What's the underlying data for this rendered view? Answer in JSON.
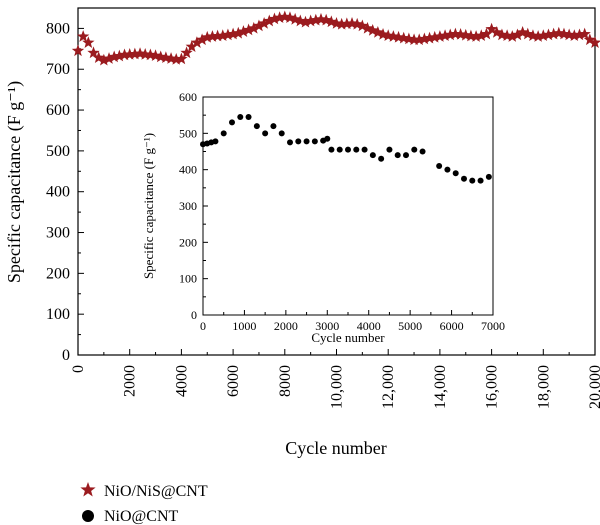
{
  "main_chart": {
    "xlabel": "Cycle number",
    "ylabel": "Specific capacitance (F g⁻¹)",
    "series_name": "NiO/NiS@CNT",
    "marker_color": "#9b1b1f",
    "xlim": [
      0,
      20000
    ],
    "ylim": [
      0,
      850
    ],
    "xticks": [
      "0",
      "2000",
      "4000",
      "6000",
      "8000",
      "10,000",
      "12,000",
      "14,000",
      "16,000",
      "18,000",
      "20,000"
    ],
    "yticks": [
      "0",
      "100",
      "200",
      "300",
      "400",
      "500",
      "600",
      "700",
      "800"
    ]
  },
  "inset_chart": {
    "xlabel": "Cycle number",
    "ylabel": "Specific capacitance (F g⁻¹)",
    "series_name": "NiO@CNT",
    "marker_color": "#000000",
    "xlim": [
      0,
      7000
    ],
    "ylim": [
      0,
      600
    ],
    "xticks": [
      "0",
      "1000",
      "2000",
      "3000",
      "4000",
      "5000",
      "6000",
      "7000"
    ],
    "yticks": [
      "0",
      "100",
      "200",
      "300",
      "400",
      "500",
      "600"
    ]
  },
  "legend": {
    "items": [
      {
        "label": "NiO/NiS@CNT",
        "marker": "star",
        "color": "#9b1b1f"
      },
      {
        "label": "NiO@CNT",
        "marker": "circle",
        "color": "#000000"
      }
    ]
  },
  "chart_data": [
    {
      "type": "scatter",
      "title": "",
      "xlabel": "Cycle number",
      "ylabel": "Specific capacitance (F g⁻¹)",
      "xlim": [
        0,
        20000
      ],
      "ylim": [
        0,
        850
      ],
      "series": [
        {
          "name": "NiO/NiS@CNT",
          "x": [
            0,
            200,
            400,
            600,
            800,
            1000,
            1200,
            1400,
            1600,
            1800,
            2000,
            2200,
            2400,
            2600,
            2800,
            3000,
            3200,
            3400,
            3600,
            3800,
            4000,
            4200,
            4400,
            4600,
            4800,
            5000,
            5200,
            5400,
            5600,
            5800,
            6000,
            6200,
            6400,
            6600,
            6800,
            7000,
            7200,
            7400,
            7600,
            7800,
            8000,
            8200,
            8400,
            8600,
            8800,
            9000,
            9200,
            9400,
            9600,
            9800,
            10000,
            10200,
            10400,
            10600,
            10800,
            11000,
            11200,
            11400,
            11600,
            11800,
            12000,
            12200,
            12400,
            12600,
            12800,
            13000,
            13200,
            13400,
            13600,
            13800,
            14000,
            14200,
            14400,
            14600,
            14800,
            15000,
            15200,
            15400,
            15600,
            15800,
            16000,
            16200,
            16400,
            16600,
            16800,
            17000,
            17200,
            17400,
            17600,
            17800,
            18000,
            18200,
            18400,
            18600,
            18800,
            19000,
            19200,
            19400,
            19600,
            19800,
            20000
          ],
          "y": [
            745,
            780,
            765,
            740,
            728,
            722,
            726,
            730,
            732,
            735,
            736,
            737,
            738,
            736,
            735,
            733,
            730,
            728,
            726,
            724,
            725,
            740,
            755,
            765,
            772,
            778,
            780,
            781,
            782,
            784,
            786,
            788,
            792,
            796,
            800,
            806,
            812,
            818,
            823,
            826,
            828,
            826,
            822,
            818,
            815,
            818,
            820,
            822,
            820,
            816,
            812,
            810,
            811,
            812,
            810,
            806,
            800,
            795,
            790,
            785,
            782,
            780,
            778,
            776,
            774,
            772,
            772,
            774,
            776,
            778,
            780,
            782,
            784,
            786,
            785,
            783,
            781,
            780,
            782,
            786,
            798,
            790,
            784,
            782,
            780,
            784,
            790,
            786,
            782,
            780,
            782,
            784,
            786,
            788,
            786,
            784,
            782,
            784,
            786,
            772,
            765
          ]
        }
      ]
    },
    {
      "type": "scatter",
      "title": "",
      "xlabel": "Cycle number",
      "ylabel": "Specific capacitance (F g⁻¹)",
      "xlim": [
        0,
        7000
      ],
      "ylim": [
        0,
        600
      ],
      "series": [
        {
          "name": "NiO@CNT",
          "x": [
            0,
            100,
            200,
            300,
            500,
            700,
            900,
            1100,
            1300,
            1500,
            1700,
            1900,
            2100,
            2300,
            2500,
            2700,
            2900,
            3000,
            3100,
            3300,
            3500,
            3700,
            3900,
            4100,
            4300,
            4500,
            4700,
            4900,
            5100,
            5300,
            5700,
            5900,
            6100,
            6300,
            6500,
            6700,
            6900
          ],
          "y": [
            470,
            472,
            475,
            478,
            500,
            530,
            545,
            545,
            520,
            500,
            520,
            500,
            475,
            478,
            478,
            478,
            480,
            485,
            455,
            455,
            455,
            455,
            455,
            440,
            430,
            455,
            440,
            440,
            455,
            450,
            410,
            400,
            390,
            375,
            370,
            370,
            380
          ]
        }
      ]
    }
  ]
}
